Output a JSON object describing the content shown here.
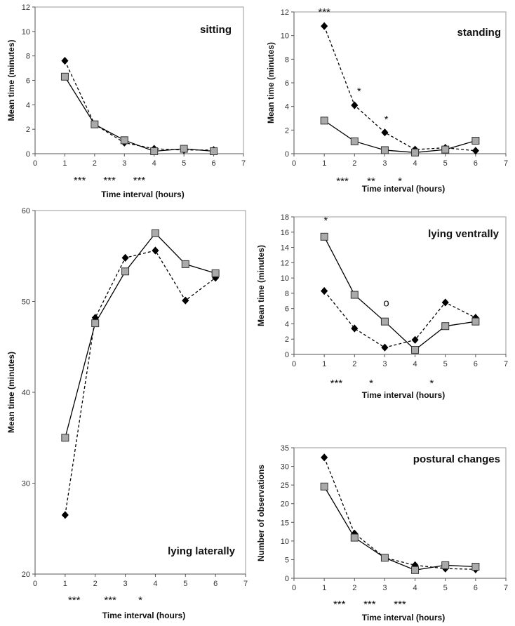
{
  "chart_data": [
    {
      "type": "line",
      "title": "sitting",
      "xlabel": "Time interval (hours)",
      "ylabel": "Mean time (minutes)",
      "xlim": [
        0,
        7
      ],
      "ylim": [
        0,
        12
      ],
      "xticks": [
        "0",
        "1",
        "2",
        "3",
        "4",
        "5",
        "6",
        "7"
      ],
      "yticks": [
        "0",
        "2",
        "4",
        "6",
        "8",
        "10",
        "12"
      ],
      "x": [
        1,
        2,
        3,
        4,
        5,
        6
      ],
      "series": [
        {
          "name": "dashed-diamond",
          "style": "dashed",
          "marker": "diamond",
          "color": "#000000",
          "values": [
            7.6,
            2.4,
            0.9,
            0.4,
            0.3,
            0.3
          ]
        },
        {
          "name": "solid-square",
          "style": "solid",
          "marker": "square",
          "color": "#aaaaaa",
          "values": [
            6.3,
            2.4,
            1.1,
            0.2,
            0.4,
            0.2
          ]
        }
      ],
      "annotations": [
        {
          "text": "***",
          "x": 1.5,
          "place": "below-axis"
        },
        {
          "text": "***",
          "x": 2.5,
          "place": "below-axis"
        },
        {
          "text": "***",
          "x": 3.5,
          "place": "below-axis"
        }
      ]
    },
    {
      "type": "line",
      "title": "standing",
      "xlabel": "Time interval (hours)",
      "ylabel": "Mean time (minutes)",
      "xlim": [
        0,
        7
      ],
      "ylim": [
        0,
        12
      ],
      "xticks": [
        "0",
        "1",
        "2",
        "3",
        "4",
        "5",
        "6",
        "7"
      ],
      "yticks": [
        "0",
        "2",
        "4",
        "6",
        "8",
        "10",
        "12"
      ],
      "x": [
        1,
        2,
        3,
        4,
        5,
        6
      ],
      "series": [
        {
          "name": "dashed-diamond",
          "style": "dashed",
          "marker": "diamond",
          "color": "#000000",
          "values": [
            10.8,
            4.1,
            1.8,
            0.35,
            0.5,
            0.25
          ]
        },
        {
          "name": "solid-square",
          "style": "solid",
          "marker": "square",
          "color": "#aaaaaa",
          "values": [
            2.8,
            1.05,
            0.3,
            0.1,
            0.35,
            1.1
          ]
        }
      ],
      "annotations": [
        {
          "text": "***",
          "x": 1.0,
          "y": 11.7
        },
        {
          "text": "*",
          "x": 2.15,
          "y": 5.0
        },
        {
          "text": "*",
          "x": 3.05,
          "y": 2.6
        },
        {
          "text": "***",
          "x": 1.6,
          "place": "below-axis"
        },
        {
          "text": "**",
          "x": 2.55,
          "place": "below-axis"
        },
        {
          "text": "*",
          "x": 3.5,
          "place": "below-axis"
        }
      ]
    },
    {
      "type": "line",
      "title": "lying laterally",
      "xlabel": "Time interval (hours)",
      "ylabel": "Mean time (minutes)",
      "xlim": [
        0,
        7
      ],
      "ylim": [
        20,
        60
      ],
      "xticks": [
        "0",
        "1",
        "2",
        "3",
        "4",
        "5",
        "6",
        "7"
      ],
      "yticks": [
        "20",
        "30",
        "40",
        "50",
        "60"
      ],
      "x": [
        1,
        2,
        3,
        4,
        5,
        6
      ],
      "series": [
        {
          "name": "dashed-diamond",
          "style": "dashed",
          "marker": "diamond",
          "color": "#000000",
          "values": [
            26.5,
            48.2,
            54.8,
            55.6,
            50.1,
            52.6
          ]
        },
        {
          "name": "solid-square",
          "style": "solid",
          "marker": "square",
          "color": "#aaaaaa",
          "values": [
            35.0,
            47.6,
            53.3,
            57.5,
            54.1,
            53.1
          ]
        }
      ],
      "annotations": [
        {
          "text": "***",
          "x": 1.3,
          "place": "below-axis"
        },
        {
          "text": "***",
          "x": 2.5,
          "place": "below-axis"
        },
        {
          "text": "*",
          "x": 3.5,
          "place": "below-axis"
        }
      ]
    },
    {
      "type": "line",
      "title": "lying ventrally",
      "xlabel": "Time interval (hours)",
      "ylabel": "Mean time (minutes)",
      "xlim": [
        0,
        7
      ],
      "ylim": [
        0,
        18
      ],
      "xticks": [
        "0",
        "1",
        "2",
        "3",
        "4",
        "5",
        "6",
        "7"
      ],
      "yticks": [
        "0",
        "2",
        "4",
        "6",
        "8",
        "10",
        "12",
        "14",
        "16",
        "18"
      ],
      "x": [
        1,
        2,
        3,
        4,
        5,
        6
      ],
      "series": [
        {
          "name": "dashed-diamond",
          "style": "dashed",
          "marker": "diamond",
          "color": "#000000",
          "values": [
            8.3,
            3.4,
            0.9,
            1.9,
            6.8,
            4.8
          ]
        },
        {
          "name": "solid-square",
          "style": "solid",
          "marker": "square",
          "color": "#aaaaaa",
          "values": [
            15.4,
            7.8,
            4.3,
            0.6,
            3.7,
            4.3
          ]
        }
      ],
      "annotations": [
        {
          "text": "*",
          "x": 1.05,
          "y": 17.1
        },
        {
          "text": "o",
          "x": 3.05,
          "y": 6.3
        },
        {
          "text": "***",
          "x": 1.4,
          "place": "below-axis"
        },
        {
          "text": "*",
          "x": 2.55,
          "place": "below-axis"
        },
        {
          "text": "*",
          "x": 4.55,
          "place": "below-axis"
        }
      ]
    },
    {
      "type": "line",
      "title": "postural changes",
      "xlabel": "Time interval (hours)",
      "ylabel": "Number of observations",
      "xlim": [
        0,
        7
      ],
      "ylim": [
        0,
        35
      ],
      "xticks": [
        "0",
        "1",
        "2",
        "3",
        "4",
        "5",
        "6",
        "7"
      ],
      "yticks": [
        "0",
        "5",
        "10",
        "15",
        "20",
        "25",
        "30",
        "35"
      ],
      "x": [
        1,
        2,
        3,
        4,
        5,
        6
      ],
      "series": [
        {
          "name": "dashed-diamond",
          "style": "dashed",
          "marker": "diamond",
          "color": "#000000",
          "values": [
            32.4,
            12.0,
            5.5,
            3.5,
            2.6,
            2.4
          ]
        },
        {
          "name": "solid-square",
          "style": "solid",
          "marker": "square",
          "color": "#aaaaaa",
          "values": [
            24.6,
            10.9,
            5.5,
            2.2,
            3.5,
            3.1
          ]
        }
      ],
      "annotations": [
        {
          "text": "***",
          "x": 1.5,
          "place": "below-axis"
        },
        {
          "text": "***",
          "x": 2.5,
          "place": "below-axis"
        },
        {
          "text": "***",
          "x": 3.5,
          "place": "below-axis"
        }
      ]
    }
  ]
}
